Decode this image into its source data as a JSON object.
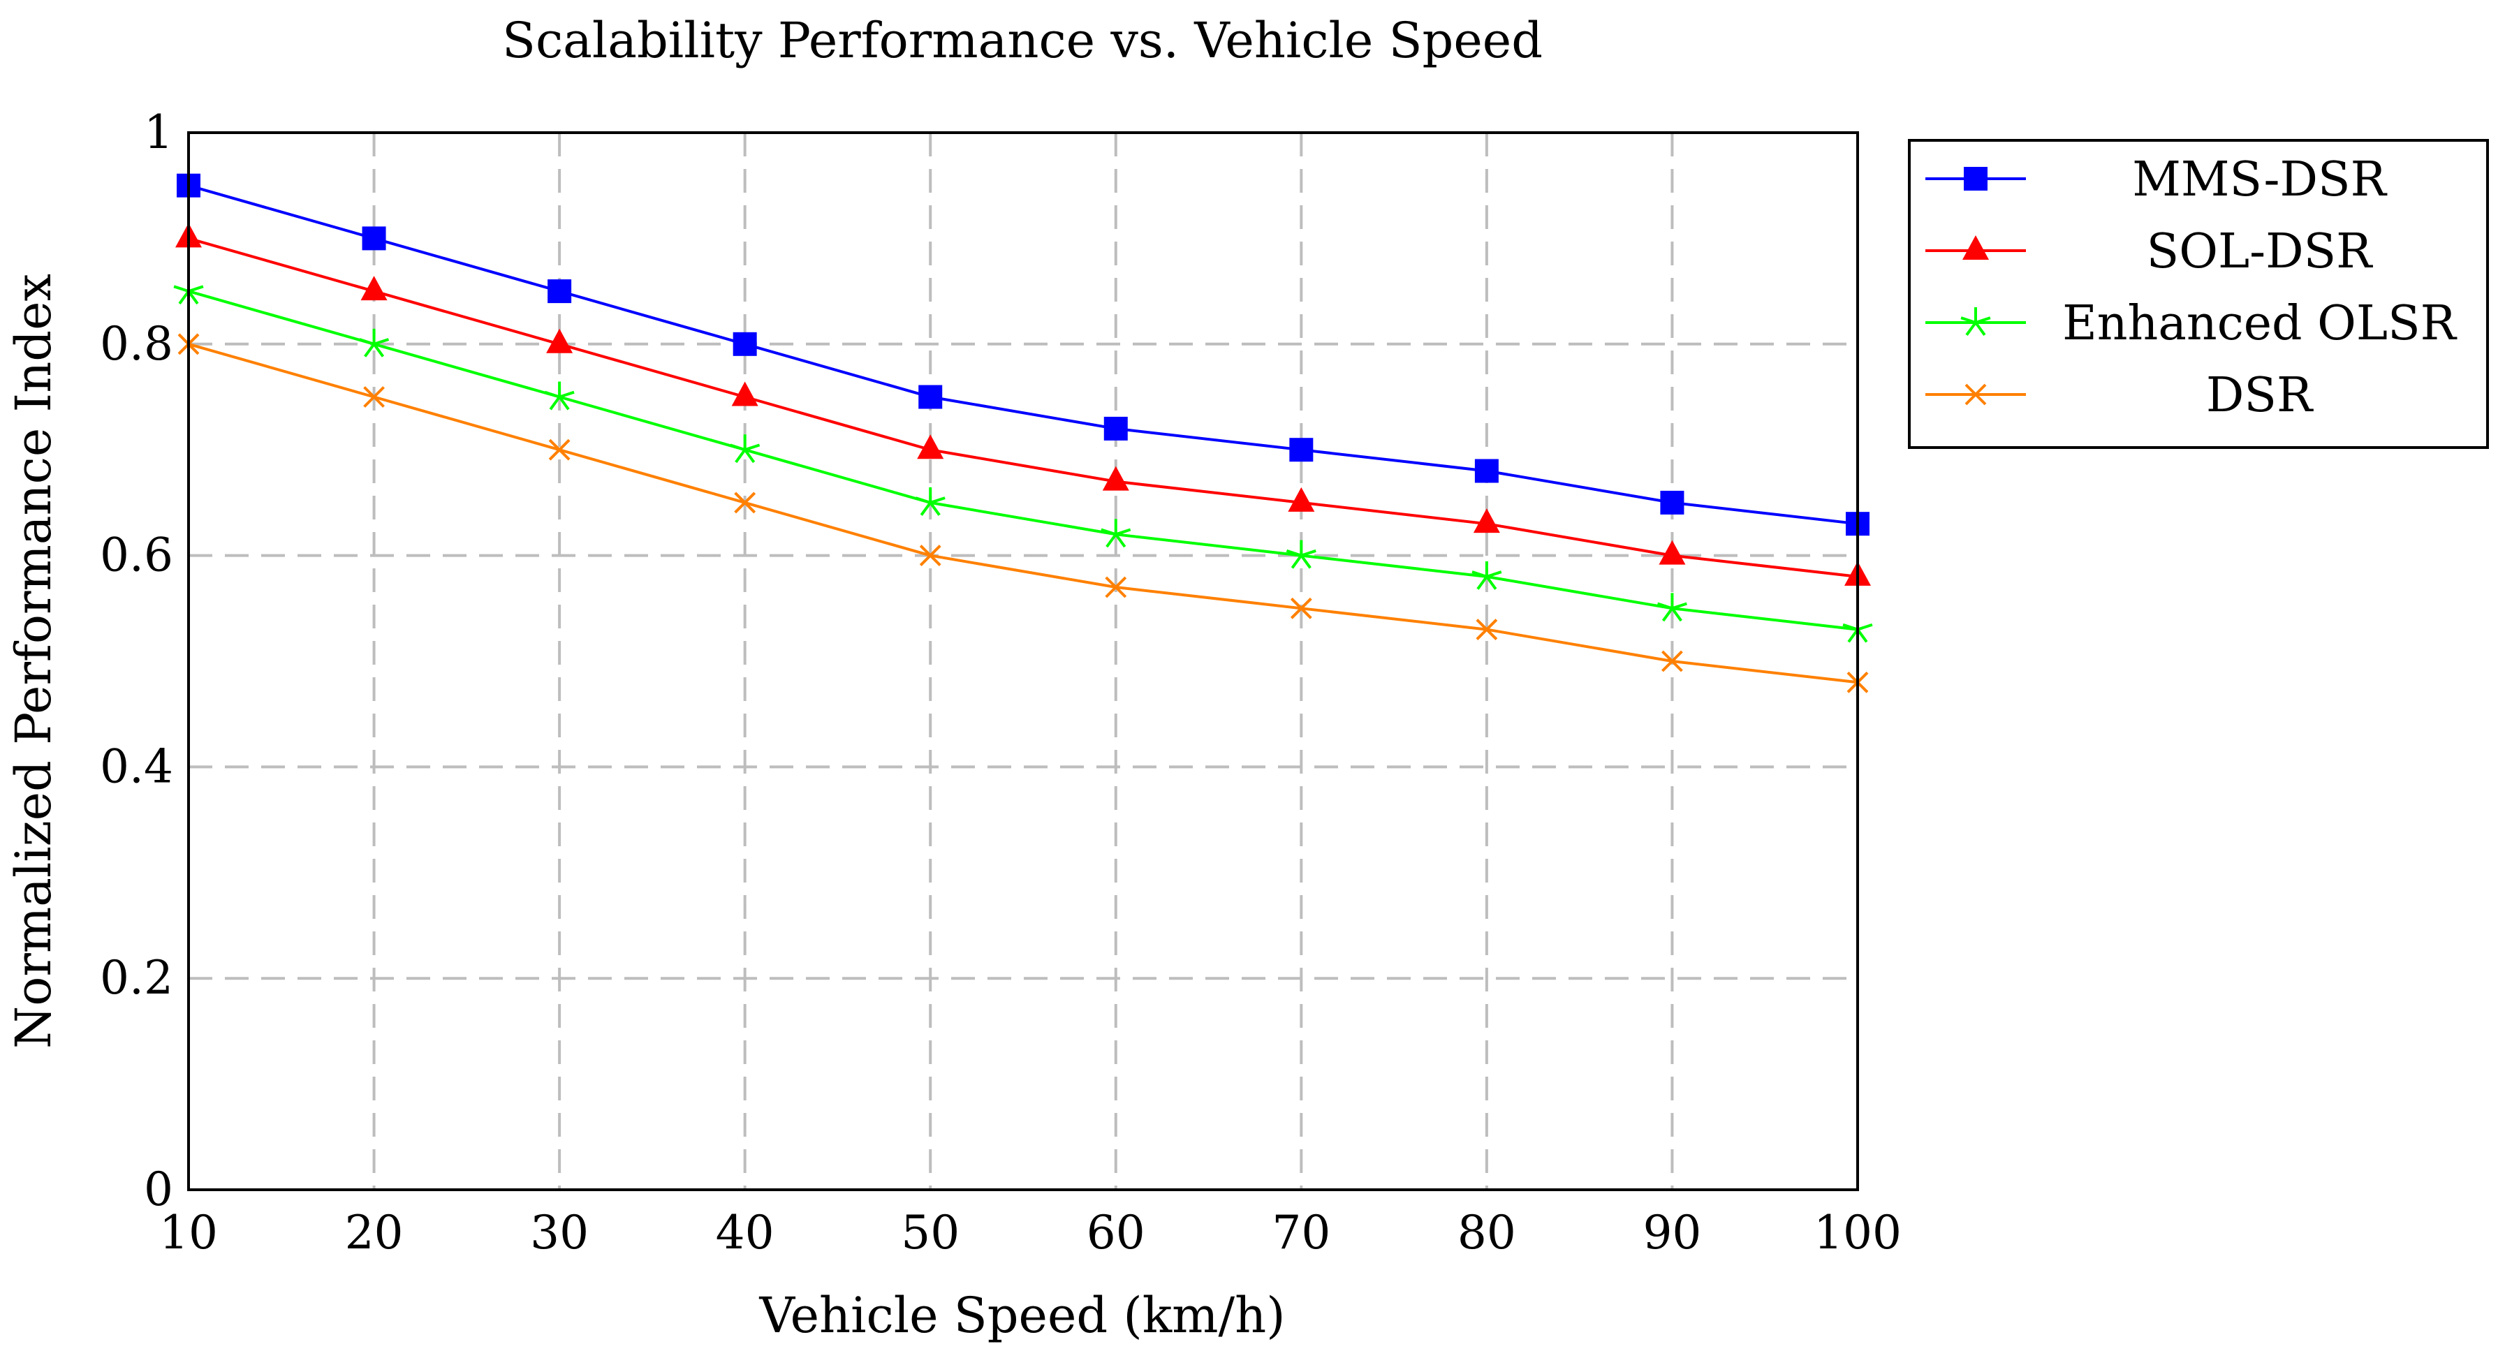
{
  "chart_data": {
    "type": "line",
    "title": "Scalability Performance vs. Vehicle Speed",
    "xlabel": "Vehicle Speed (km/h)",
    "ylabel": "Normalized Performance Index",
    "x": [
      10,
      20,
      30,
      40,
      50,
      60,
      70,
      80,
      90,
      100
    ],
    "xlim": [
      10,
      100
    ],
    "ylim": [
      0,
      1
    ],
    "xticks": [
      "10",
      "20",
      "30",
      "40",
      "50",
      "60",
      "70",
      "80",
      "90",
      "100"
    ],
    "yticks": [
      "0",
      "0.2",
      "0.4",
      "0.6",
      "0.8",
      "1"
    ],
    "grid": true,
    "grid_style": "dashed",
    "legend_position": "outside-top-right",
    "series": [
      {
        "name": "MMS-DSR",
        "color": "#0000ff",
        "marker": "square",
        "values": [
          0.95,
          0.9,
          0.85,
          0.8,
          0.75,
          0.72,
          0.7,
          0.68,
          0.65,
          0.63
        ]
      },
      {
        "name": "SOL-DSR",
        "color": "#ff0000",
        "marker": "triangle",
        "values": [
          0.9,
          0.85,
          0.8,
          0.75,
          0.7,
          0.67,
          0.65,
          0.63,
          0.6,
          0.58
        ]
      },
      {
        "name": "Enhanced OLSR",
        "color": "#00ff00",
        "marker": "star",
        "values": [
          0.85,
          0.8,
          0.75,
          0.7,
          0.65,
          0.62,
          0.6,
          0.58,
          0.55,
          0.53
        ]
      },
      {
        "name": "DSR",
        "color": "#ff8000",
        "marker": "x",
        "values": [
          0.8,
          0.75,
          0.7,
          0.65,
          0.6,
          0.57,
          0.55,
          0.53,
          0.5,
          0.48
        ]
      }
    ]
  }
}
